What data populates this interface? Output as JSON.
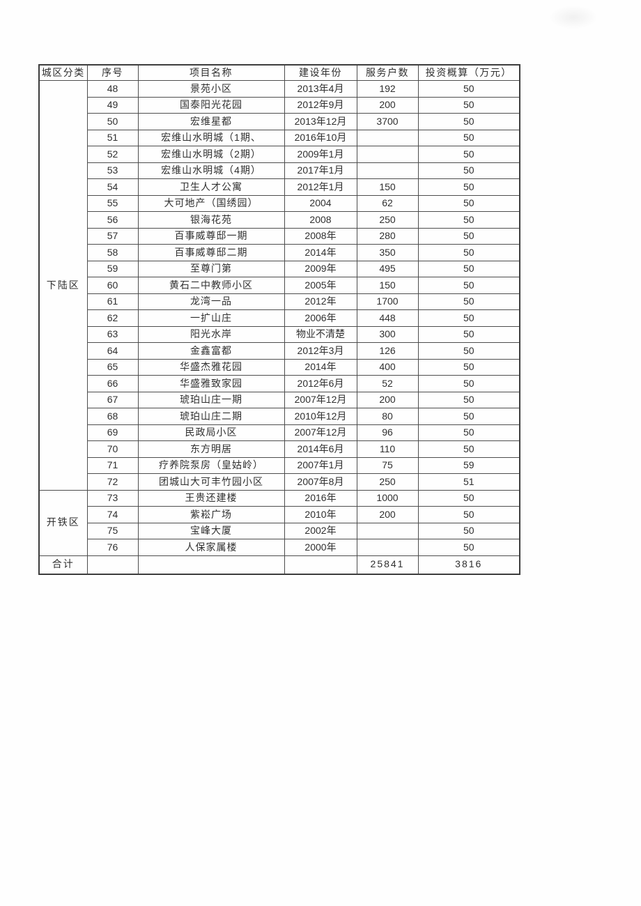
{
  "table": {
    "headers": [
      "城区分类",
      "序号",
      "项目名称",
      "建设年份",
      "服务户数",
      "投资概算（万元）"
    ],
    "groups": [
      {
        "district": "下陆区",
        "rows": [
          {
            "no": "48",
            "name": "景苑小区",
            "year": "2013年4月",
            "households": "192",
            "investment": "50"
          },
          {
            "no": "49",
            "name": "国泰阳光花园",
            "year": "2012年9月",
            "households": "200",
            "investment": "50"
          },
          {
            "no": "50",
            "name": "宏维星都",
            "year": "2013年12月",
            "households": "3700",
            "investment": "50"
          },
          {
            "no": "51",
            "name": "宏维山水明城（1期、",
            "year": "2016年10月",
            "households": "",
            "investment": "50"
          },
          {
            "no": "52",
            "name": "宏维山水明城（2期）",
            "year": "2009年1月",
            "households": "",
            "investment": "50"
          },
          {
            "no": "53",
            "name": "宏维山水明城（4期）",
            "year": "2017年1月",
            "households": "",
            "investment": "50"
          },
          {
            "no": "54",
            "name": "卫生人才公寓",
            "year": "2012年1月",
            "households": "150",
            "investment": "50"
          },
          {
            "no": "55",
            "name": "大可地产（国绣园）",
            "year": "2004",
            "households": "62",
            "investment": "50"
          },
          {
            "no": "56",
            "name": "银海花苑",
            "year": "2008",
            "households": "250",
            "investment": "50"
          },
          {
            "no": "57",
            "name": "百事威尊邸一期",
            "year": "2008年",
            "households": "280",
            "investment": "50"
          },
          {
            "no": "58",
            "name": "百事威尊邸二期",
            "year": "2014年",
            "households": "350",
            "investment": "50"
          },
          {
            "no": "59",
            "name": "至尊门第",
            "year": "2009年",
            "households": "495",
            "investment": "50"
          },
          {
            "no": "60",
            "name": "黄石二中教师小区",
            "year": "2005年",
            "households": "150",
            "investment": "50"
          },
          {
            "no": "61",
            "name": "龙湾一品",
            "year": "2012年",
            "households": "1700",
            "investment": "50"
          },
          {
            "no": "62",
            "name": "一扩山庄",
            "year": "2006年",
            "households": "448",
            "investment": "50"
          },
          {
            "no": "63",
            "name": "阳光水岸",
            "year": "物业不清楚",
            "households": "300",
            "investment": "50"
          },
          {
            "no": "64",
            "name": "金鑫富都",
            "year": "2012年3月",
            "households": "126",
            "investment": "50"
          },
          {
            "no": "65",
            "name": "华盛杰雅花园",
            "year": "2014年",
            "households": "400",
            "investment": "50"
          },
          {
            "no": "66",
            "name": "华盛雅致家园",
            "year": "2012年6月",
            "households": "52",
            "investment": "50"
          },
          {
            "no": "67",
            "name": "琥珀山庄一期",
            "year": "2007年12月",
            "households": "200",
            "investment": "50"
          },
          {
            "no": "68",
            "name": "琥珀山庄二期",
            "year": "2010年12月",
            "households": "80",
            "investment": "50"
          },
          {
            "no": "69",
            "name": "民政局小区",
            "year": "2007年12月",
            "households": "96",
            "investment": "50"
          },
          {
            "no": "70",
            "name": "东方明居",
            "year": "2014年6月",
            "households": "110",
            "investment": "50"
          },
          {
            "no": "71",
            "name": "疗养院泵房（皇姑岭）",
            "year": "2007年1月",
            "households": "75",
            "investment": "59"
          },
          {
            "no": "72",
            "name": "团城山大可丰竹园小区",
            "year": "2007年8月",
            "households": "250",
            "investment": "51"
          }
        ]
      },
      {
        "district": "开铁区",
        "rows": [
          {
            "no": "73",
            "name": "王贵还建楼",
            "year": "2016年",
            "households": "1000",
            "investment": "50"
          },
          {
            "no": "74",
            "name": "紫崧广场",
            "year": "2010年",
            "households": "200",
            "investment": "50"
          },
          {
            "no": "75",
            "name": "宝峰大厦",
            "year": "2002年",
            "households": "",
            "investment": "50"
          },
          {
            "no": "76",
            "name": "人保家属楼",
            "year": "2000年",
            "households": "",
            "investment": "50"
          }
        ]
      }
    ],
    "total": {
      "label": "合计",
      "no": "",
      "name": "",
      "year": "",
      "households": "25841",
      "investment": "3816"
    }
  }
}
